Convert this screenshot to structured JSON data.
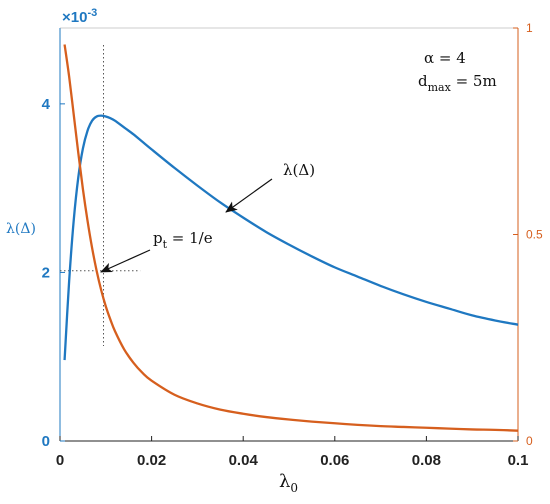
{
  "chart_data": {
    "type": "line",
    "xlabel": "λ",
    "xlabel_sub": "0",
    "ylabel_left": "λ(Δ)",
    "ylabel_right": "",
    "y_exponent": "×10",
    "y_exponent_power": "-3",
    "xlim": [
      0,
      0.1
    ],
    "ylim_left": [
      0,
      0.0049
    ],
    "ylim_right": [
      0,
      1
    ],
    "x_ticks": [
      "0",
      "0.02",
      "0.04",
      "0.06",
      "0.08",
      "0.1"
    ],
    "y_left_ticks": [
      "0",
      "2",
      "4"
    ],
    "y_right_ticks": [
      "0",
      "0.5",
      "1"
    ],
    "grid": false,
    "params": {
      "alpha_label": "α = 4",
      "dmax_label_pre": "d",
      "dmax_label_sub": "max",
      "dmax_label_post": " = 5m"
    },
    "annotations": [
      {
        "text": "λ(Δ)",
        "points_to": {
          "x": 0.037,
          "y_left": 0.00277
        }
      },
      {
        "text_pre": "p",
        "text_sub": "t",
        "text_post": " = 1/e",
        "points_to": {
          "x": 0.0095,
          "y_left": 0.00202
        }
      }
    ],
    "reference_lines": {
      "x": 0.0095,
      "y_left": 0.00202,
      "style": "dotted"
    },
    "series": [
      {
        "name": "λ(Δ)",
        "axis": "left",
        "color": "#1f78c1",
        "x": [
          0.001,
          0.002,
          0.003,
          0.004,
          0.005,
          0.006,
          0.007,
          0.008,
          0.009,
          0.01,
          0.011,
          0.012,
          0.014,
          0.016,
          0.018,
          0.02,
          0.025,
          0.03,
          0.035,
          0.04,
          0.045,
          0.05,
          0.055,
          0.06,
          0.065,
          0.07,
          0.075,
          0.08,
          0.085,
          0.09,
          0.095,
          0.1
        ],
        "values": [
          0.00096,
          0.0019,
          0.00262,
          0.00313,
          0.00347,
          0.00368,
          0.0038,
          0.00385,
          0.00386,
          0.00385,
          0.00383,
          0.0038,
          0.00372,
          0.00364,
          0.00355,
          0.00346,
          0.00324,
          0.00303,
          0.00283,
          0.00265,
          0.00248,
          0.00233,
          0.00219,
          0.00206,
          0.00195,
          0.00184,
          0.00174,
          0.00165,
          0.00157,
          0.00149,
          0.00143,
          0.00138
        ]
      },
      {
        "name": "p_t",
        "axis": "right",
        "color": "#d65f1e",
        "x": [
          0.001,
          0.002,
          0.003,
          0.004,
          0.005,
          0.006,
          0.007,
          0.008,
          0.009,
          0.01,
          0.011,
          0.012,
          0.014,
          0.016,
          0.018,
          0.02,
          0.025,
          0.03,
          0.035,
          0.04,
          0.045,
          0.05,
          0.055,
          0.06,
          0.065,
          0.07,
          0.075,
          0.08,
          0.085,
          0.09,
          0.095,
          0.1
        ],
        "values": [
          0.96,
          0.882,
          0.79,
          0.697,
          0.61,
          0.534,
          0.468,
          0.412,
          0.365,
          0.326,
          0.294,
          0.266,
          0.222,
          0.19,
          0.165,
          0.146,
          0.112,
          0.091,
          0.076,
          0.066,
          0.058,
          0.052,
          0.047,
          0.043,
          0.039,
          0.036,
          0.034,
          0.032,
          0.03,
          0.028,
          0.027,
          0.025
        ]
      }
    ]
  }
}
